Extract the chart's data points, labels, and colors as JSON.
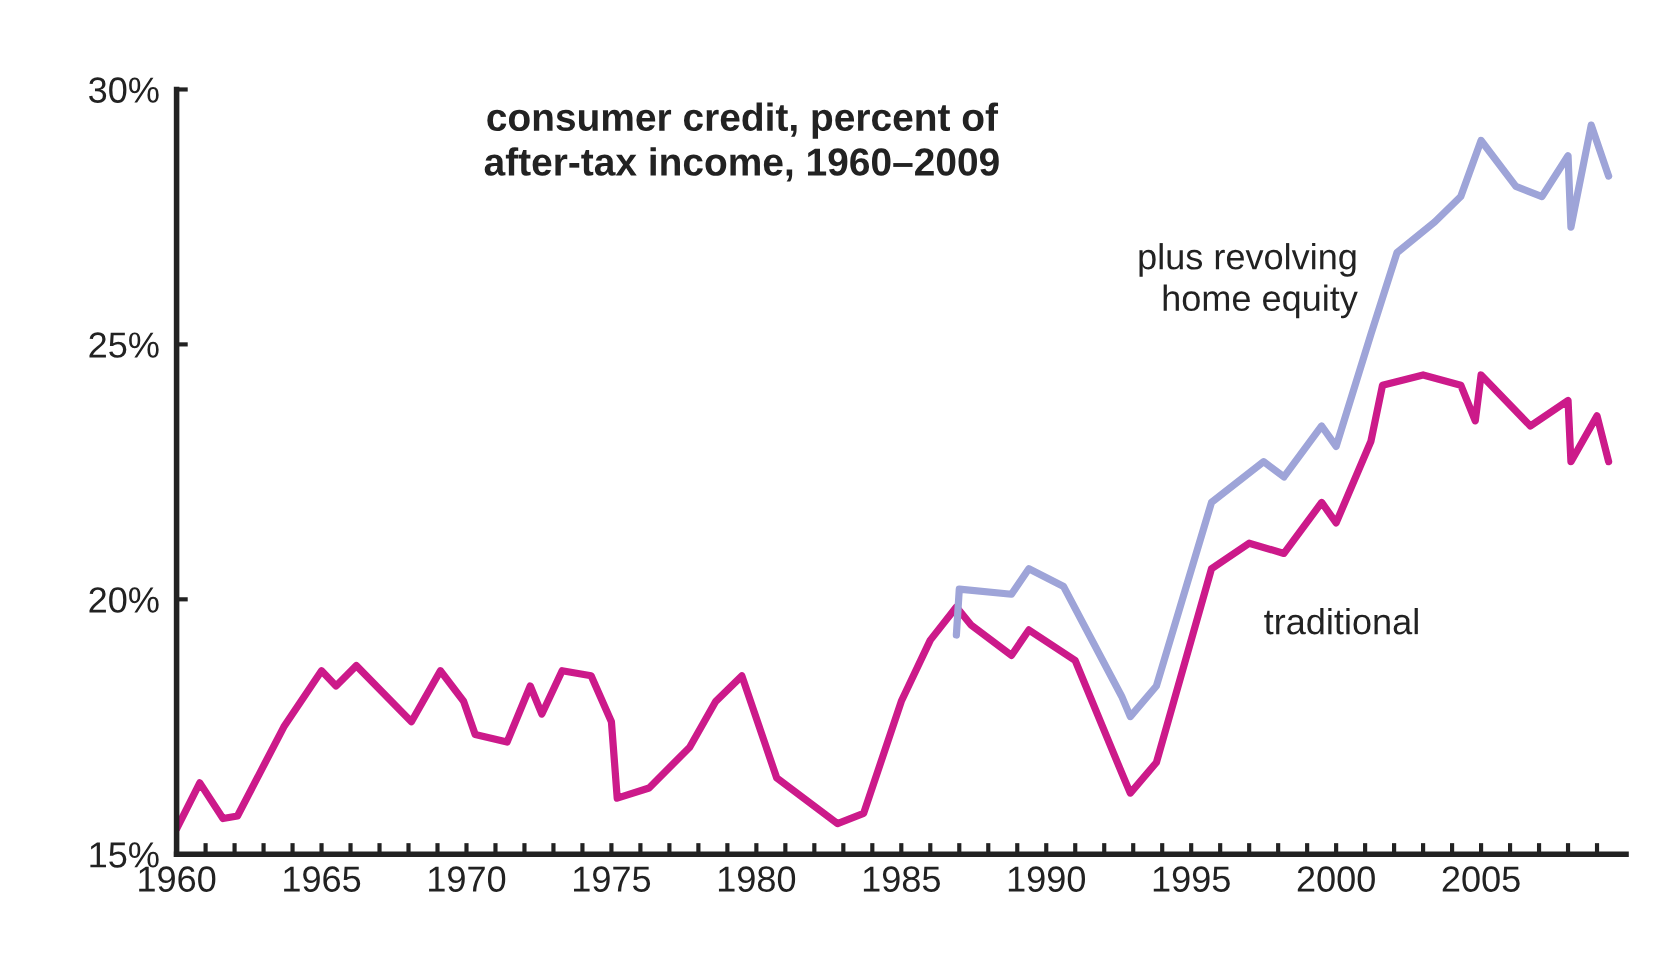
{
  "chart_data": {
    "type": "line",
    "title": "consumer credit, percent of\nafter-tax income, 1960–2009",
    "xlim": [
      1960,
      2010
    ],
    "ylim": [
      15,
      30
    ],
    "xticks": [
      1960,
      {
        "value": 1961,
        "label": null
      },
      {
        "value": 1962,
        "label": null
      },
      {
        "value": 1963,
        "label": null
      },
      {
        "value": 1964,
        "label": null
      },
      1965,
      {
        "value": 1966,
        "label": null
      },
      {
        "value": 1967,
        "label": null
      },
      {
        "value": 1968,
        "label": null
      },
      {
        "value": 1969,
        "label": null
      },
      1970,
      {
        "value": 1971,
        "label": null
      },
      {
        "value": 1972,
        "label": null
      },
      {
        "value": 1973,
        "label": null
      },
      {
        "value": 1974,
        "label": null
      },
      1975,
      {
        "value": 1976,
        "label": null
      },
      {
        "value": 1977,
        "label": null
      },
      {
        "value": 1978,
        "label": null
      },
      {
        "value": 1979,
        "label": null
      },
      1980,
      {
        "value": 1981,
        "label": null
      },
      {
        "value": 1982,
        "label": null
      },
      {
        "value": 1983,
        "label": null
      },
      {
        "value": 1984,
        "label": null
      },
      1985,
      {
        "value": 1986,
        "label": null
      },
      {
        "value": 1987,
        "label": null
      },
      {
        "value": 1988,
        "label": null
      },
      {
        "value": 1989,
        "label": null
      },
      1990,
      {
        "value": 1991,
        "label": null
      },
      {
        "value": 1992,
        "label": null
      },
      {
        "value": 1993,
        "label": null
      },
      {
        "value": 1994,
        "label": null
      },
      1995,
      {
        "value": 1996,
        "label": null
      },
      {
        "value": 1997,
        "label": null
      },
      {
        "value": 1998,
        "label": null
      },
      {
        "value": 1999,
        "label": null
      },
      2000,
      {
        "value": 2001,
        "label": null
      },
      {
        "value": 2002,
        "label": null
      },
      {
        "value": 2003,
        "label": null
      },
      {
        "value": 2004,
        "label": null
      },
      2005,
      {
        "value": 2006,
        "label": null
      },
      {
        "value": 2007,
        "label": null
      },
      {
        "value": 2008,
        "label": null
      },
      {
        "value": 2009,
        "label": null
      }
    ],
    "yticks": [
      {
        "value": 15,
        "label": "15%"
      },
      {
        "value": 20,
        "label": "20%"
      },
      {
        "value": 25,
        "label": "25%"
      },
      {
        "value": 30,
        "label": "30%"
      }
    ],
    "grid": false,
    "legend": false,
    "marker": "none",
    "line_style": "solid",
    "series": [
      {
        "name": "traditional",
        "color": "#cc1a8a",
        "x": [
          1960.0,
          1960.8,
          1961.6,
          1962.1,
          1963.7,
          1965.0,
          1965.5,
          1966.2,
          1968.1,
          1969.1,
          1969.9,
          1970.3,
          1971.4,
          1972.2,
          1972.6,
          1973.3,
          1974.3,
          1975.0,
          1975.2,
          1976.3,
          1977.7,
          1978.6,
          1979.5,
          1980.7,
          1982.1,
          1982.8,
          1983.7,
          1985.0,
          1986.0,
          1986.9,
          1987.4,
          1988.8,
          1989.4,
          1991.0,
          1992.6,
          1992.9,
          1993.8,
          1995.7,
          1997.0,
          1998.2,
          1999.5,
          2000.0,
          2001.2,
          2001.6,
          2003.0,
          2004.3,
          2004.8,
          2005.0,
          2006.7,
          2008.0,
          2008.1,
          2009.0,
          2009.4
        ],
        "values": [
          15.5,
          16.4,
          15.7,
          15.75,
          17.5,
          18.6,
          18.3,
          18.7,
          17.6,
          18.6,
          18.0,
          17.35,
          17.2,
          18.3,
          17.75,
          18.6,
          18.5,
          17.6,
          16.1,
          16.3,
          17.1,
          18.0,
          18.5,
          16.5,
          15.9,
          15.6,
          15.8,
          18.0,
          19.2,
          19.85,
          19.5,
          18.9,
          19.4,
          18.8,
          16.6,
          16.2,
          16.8,
          20.6,
          21.1,
          20.9,
          21.9,
          21.5,
          23.1,
          24.2,
          24.4,
          24.2,
          23.5,
          24.4,
          23.4,
          23.9,
          22.7,
          23.6,
          22.7
        ]
      },
      {
        "name": "plus revolving\nhome equity",
        "color": "#9ea4d8",
        "x": [
          1986.9,
          1987.0,
          1988.8,
          1989.4,
          1990.6,
          1992.6,
          1992.9,
          1993.8,
          1995.7,
          1997.5,
          1998.2,
          1999.5,
          2000.0,
          2001.2,
          2002.1,
          2003.4,
          2004.3,
          2005.0,
          2006.2,
          2007.1,
          2008.0,
          2008.1,
          2008.8,
          2009.4
        ],
        "values": [
          19.3,
          20.2,
          20.1,
          20.6,
          20.25,
          18.1,
          17.7,
          18.3,
          21.9,
          22.7,
          22.4,
          23.4,
          23.0,
          25.2,
          26.8,
          27.4,
          27.9,
          29.0,
          28.1,
          27.9,
          28.7,
          27.3,
          29.3,
          28.3
        ]
      }
    ]
  }
}
